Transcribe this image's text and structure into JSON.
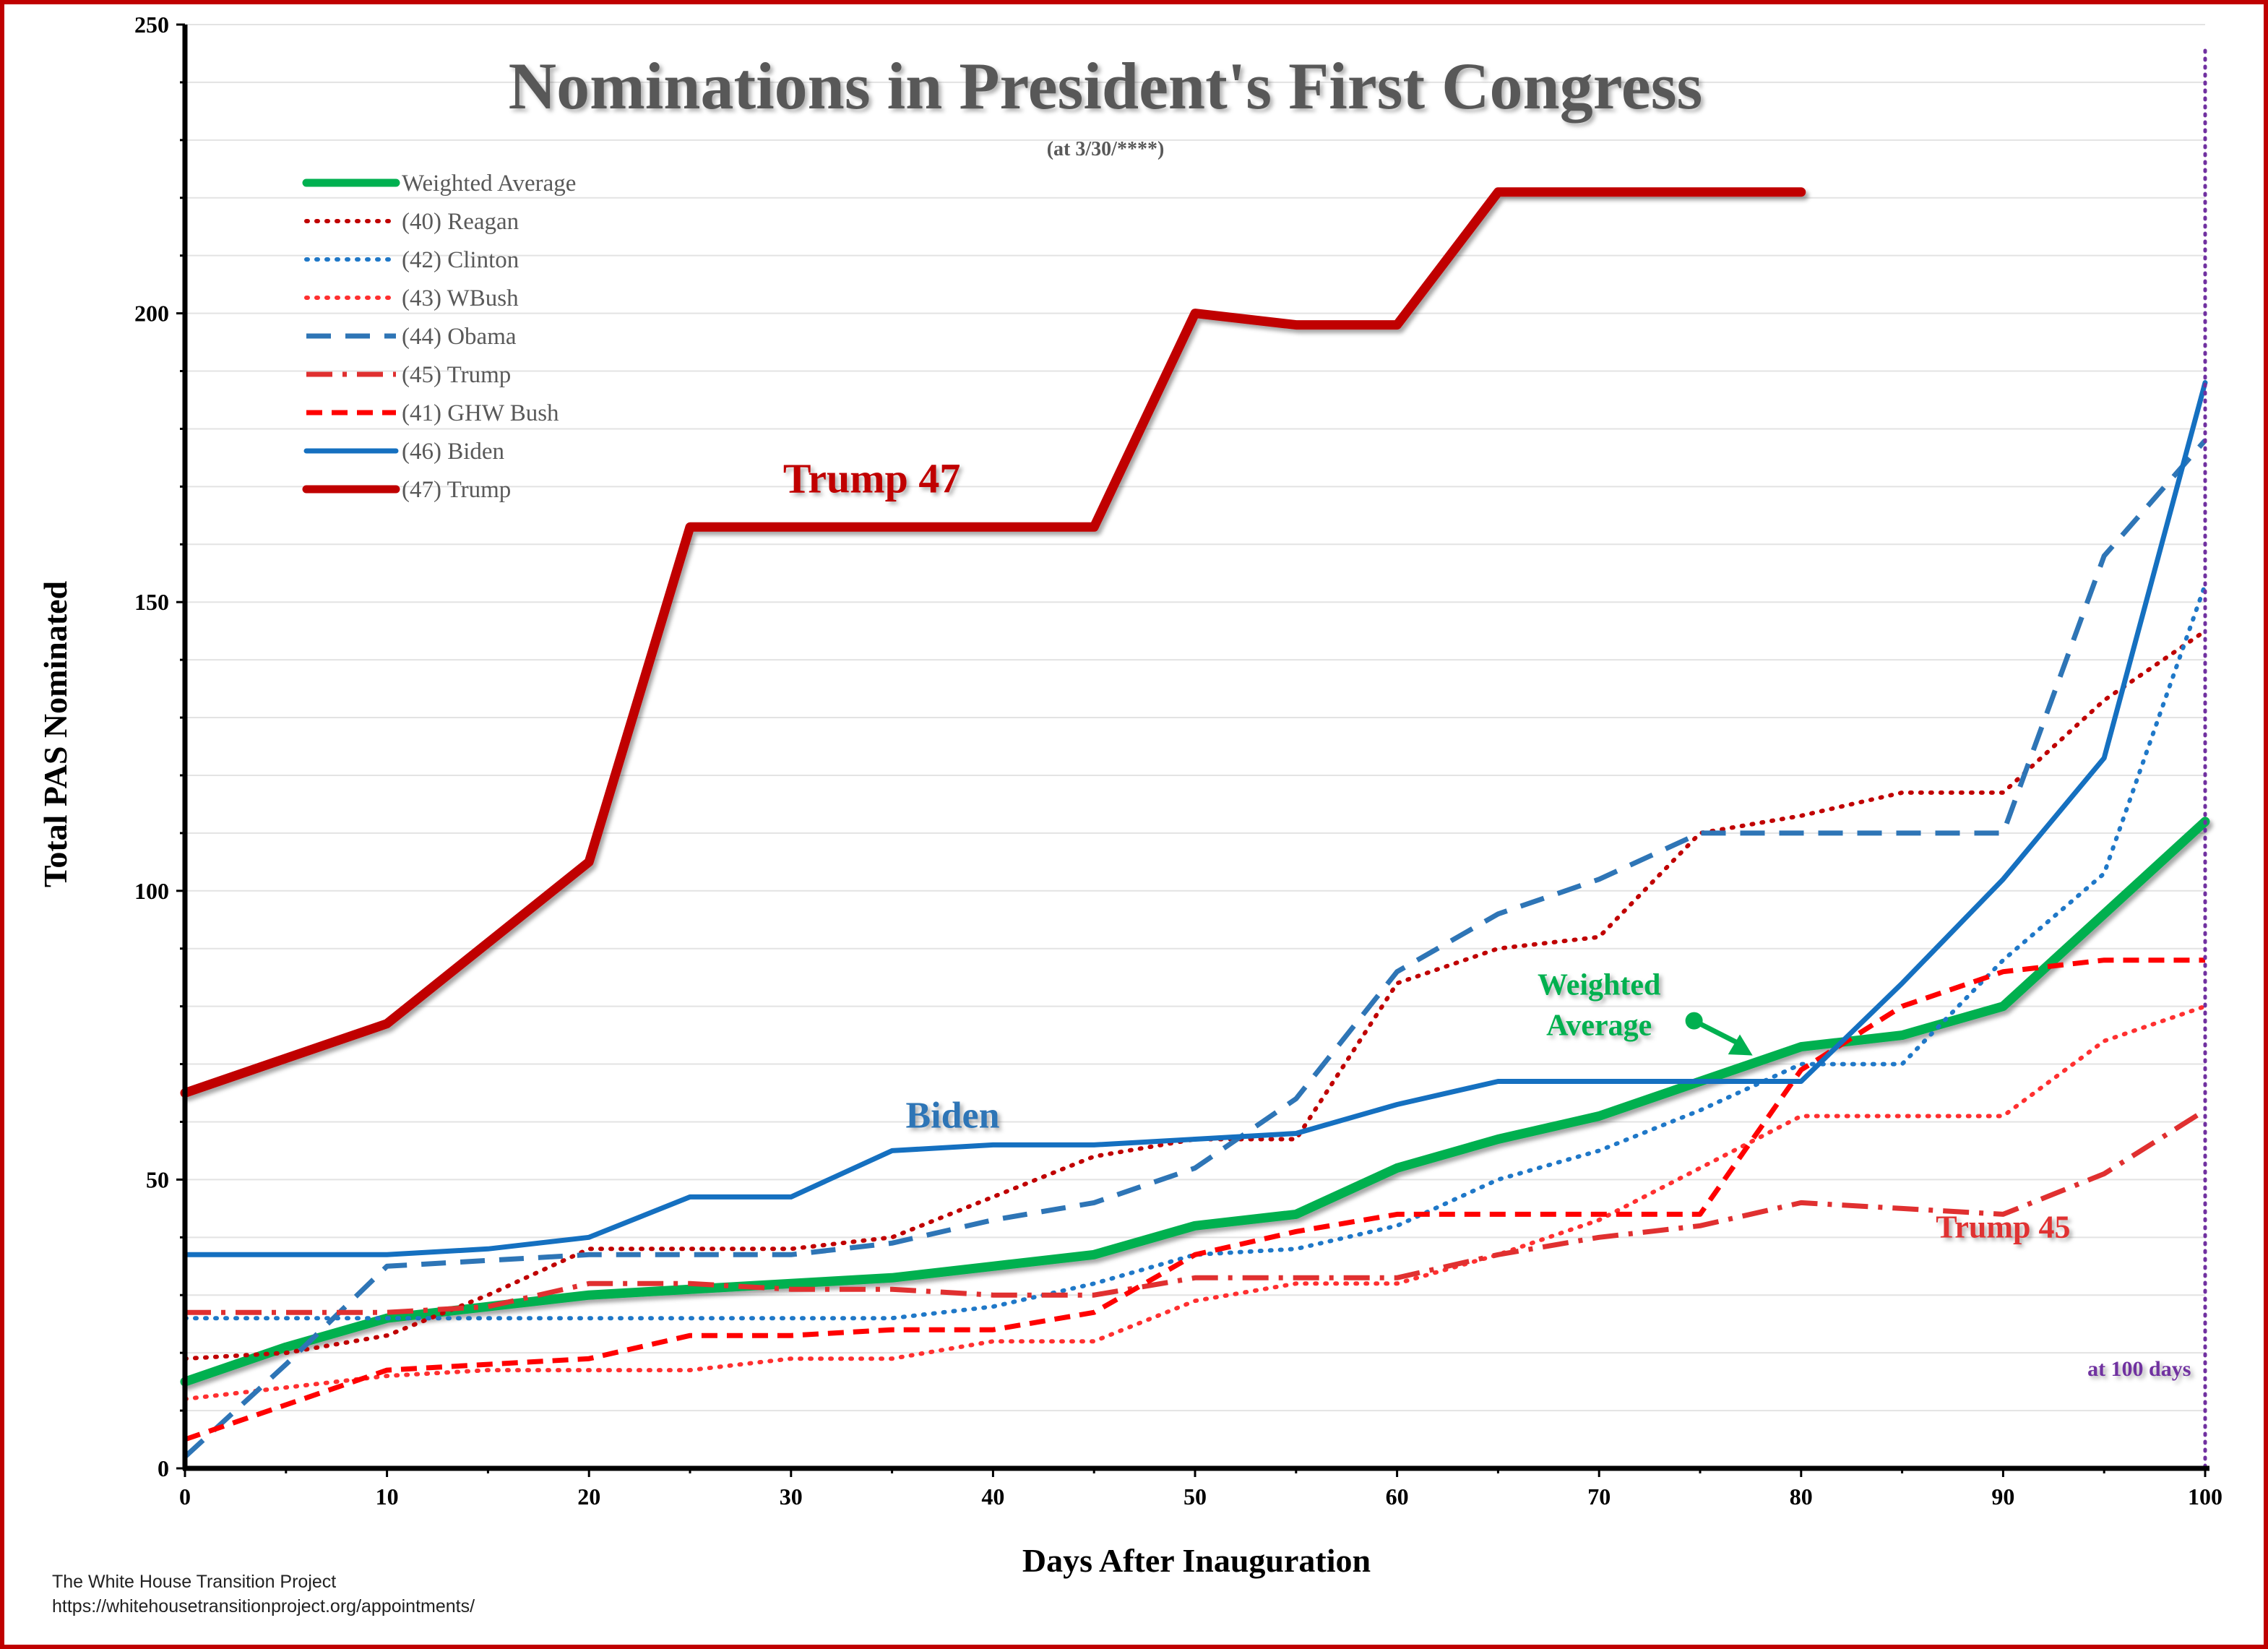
{
  "chart_data": {
    "type": "line",
    "title": "Nominations in President's First Congress",
    "subtitle": "(at 3/30/****)",
    "xlabel": "Days After Inauguration",
    "ylabel": "Total PAS Nominated",
    "xlim": [
      0,
      100
    ],
    "ylim": [
      0,
      250
    ],
    "xticks": [
      0,
      10,
      20,
      30,
      40,
      50,
      60,
      70,
      80,
      90,
      100
    ],
    "yticks": [
      0,
      50,
      100,
      150,
      200,
      250
    ],
    "grid": "horizontal",
    "legend": "top-left",
    "x": [
      0,
      5,
      10,
      15,
      20,
      25,
      30,
      35,
      40,
      45,
      50,
      55,
      60,
      65,
      70,
      75,
      80,
      85,
      90,
      95,
      100
    ],
    "series": [
      {
        "name": "Weighted Average",
        "color": "#00b050",
        "style": "solid-thick",
        "values": [
          15,
          21,
          26,
          28,
          30,
          31,
          32,
          33,
          35,
          37,
          42,
          44,
          52,
          57,
          61,
          67,
          73,
          75,
          80,
          96,
          112
        ]
      },
      {
        "name": "(40) Reagan",
        "color": "#c00000",
        "style": "dotted",
        "values": [
          19,
          20,
          23,
          30,
          38,
          38,
          38,
          40,
          47,
          54,
          57,
          57,
          84,
          90,
          92,
          110,
          113,
          117,
          117,
          133,
          145
        ]
      },
      {
        "name": "(42) Clinton",
        "color": "#1f78c8",
        "style": "dotted",
        "values": [
          26,
          26,
          26,
          26,
          26,
          26,
          26,
          26,
          28,
          32,
          37,
          38,
          42,
          50,
          55,
          62,
          70,
          70,
          88,
          103,
          153
        ]
      },
      {
        "name": "(43) WBush",
        "color": "#ff3030",
        "style": "dotted",
        "values": [
          12,
          14,
          16,
          17,
          17,
          17,
          19,
          19,
          22,
          22,
          29,
          32,
          32,
          37,
          43,
          52,
          61,
          61,
          61,
          74,
          80
        ]
      },
      {
        "name": "(44) Obama",
        "color": "#2e75b6",
        "style": "dashed",
        "values": [
          2,
          18,
          35,
          36,
          37,
          37,
          37,
          39,
          43,
          46,
          52,
          64,
          86,
          96,
          102,
          110,
          110,
          110,
          110,
          158,
          178
        ]
      },
      {
        "name": "(45) Trump",
        "color": "#e03030",
        "style": "dashdot",
        "values": [
          27,
          27,
          27,
          28,
          32,
          32,
          31,
          31,
          30,
          30,
          33,
          33,
          33,
          37,
          40,
          42,
          46,
          45,
          44,
          51,
          62
        ]
      },
      {
        "name": "(41) GHW Bush",
        "color": "#ff0000",
        "style": "dashed-short",
        "values": [
          5,
          11,
          17,
          18,
          19,
          23,
          23,
          24,
          24,
          27,
          37,
          41,
          44,
          44,
          44,
          44,
          69,
          80,
          86,
          88,
          88
        ]
      },
      {
        "name": "(46) Biden",
        "color": "#1570c0",
        "style": "solid",
        "values": [
          37,
          37,
          37,
          38,
          40,
          47,
          47,
          55,
          56,
          56,
          57,
          58,
          63,
          67,
          67,
          67,
          67,
          84,
          102,
          123,
          188
        ]
      },
      {
        "name": "(47) Trump",
        "color": "#c00000",
        "style": "solid-thick",
        "x": [
          0,
          10,
          20,
          25,
          30,
          35,
          40,
          45,
          50,
          55,
          60,
          65,
          70,
          75,
          80
        ],
        "values": [
          65,
          77,
          105,
          163,
          163,
          163,
          163,
          163,
          200,
          198,
          198,
          221,
          221,
          221,
          221
        ]
      }
    ],
    "annotations": [
      {
        "text": "Trump 47",
        "x": 34,
        "y": 169,
        "color": "#c00000"
      },
      {
        "text": "Biden",
        "x": 38,
        "y": 59,
        "color": "#2e75b6"
      },
      {
        "text": "Trump 45",
        "x": 90,
        "y": 40,
        "color": "#e03030"
      },
      {
        "text": "Weighted",
        "x": 70,
        "y": 82,
        "color": "#00b050"
      },
      {
        "text": "Average",
        "x": 70,
        "y": 75,
        "color": "#00b050"
      },
      {
        "text": "at 100 days",
        "x": 95,
        "y": 16,
        "color": "#7030a0"
      }
    ],
    "reference_line": {
      "x": 100,
      "color": "#7030a0",
      "style": "dotted"
    }
  },
  "source": {
    "line1": "The White House Transition Project",
    "line2": "https://whitehousetransitionproject.org/appointments/"
  }
}
